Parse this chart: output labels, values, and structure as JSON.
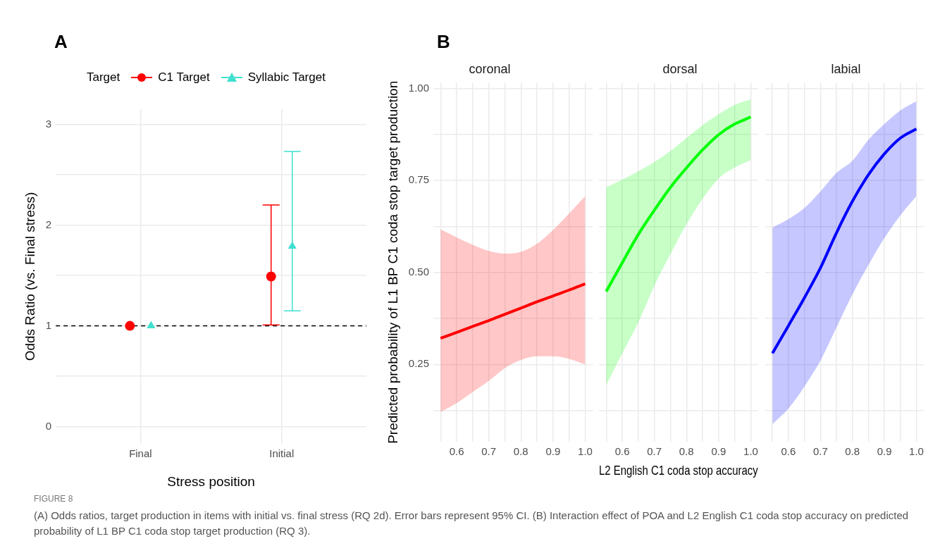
{
  "chart_data": [
    {
      "type": "scatter",
      "annotations": [
        "A",
        "FIGURE 8",
        "(A) Odds ratios, target production in items with initial vs. final stress (RQ 2d). Error bars represent 95% CI. (B) Interaction effect of POA and L2 English C1 coda stop accuracy on predicted probability of L1 BP C1 coda stop target production (RQ 3)."
      ],
      "categories": [
        "Final",
        "Initial"
      ],
      "xlabel": "Stress position",
      "ylabel": "Odds Ratio (vs. Final stress)",
      "legend": "top",
      "legend_title": "Target",
      "ylim": [
        -0.17,
        3.15
      ],
      "yticks": [
        0,
        {
          "value": 0.5,
          "label": null
        },
        1,
        {
          "value": 1.5,
          "label": null
        },
        2,
        {
          "value": 2.5,
          "label": null
        },
        3
      ],
      "grid": true,
      "ref_lines": [
        {
          "axis": "y",
          "value": 1,
          "color": "#000000",
          "line_style": "dashed"
        }
      ],
      "series": [
        {
          "name": "C1 Target",
          "color": "#ff0000",
          "marker": "circle",
          "values": [
            1,
            1.49
          ],
          "errors": [
            null,
            [
              1.01,
              2.2
            ]
          ]
        },
        {
          "name": "Syllabic Target",
          "color": "#40e0d0",
          "marker": "triangle",
          "values": [
            1,
            1.79
          ],
          "errors": [
            null,
            [
              1.15,
              2.73
            ]
          ]
        }
      ]
    },
    {
      "type": "line",
      "title": "coronal",
      "annotations": [
        "B"
      ],
      "ylabel": "Predicted probability of L1 BP C1 coda stop target production",
      "x": [
        0.55,
        0.6,
        0.65,
        0.7,
        0.75,
        0.8,
        0.85,
        0.9,
        0.95,
        1.0
      ],
      "xlim": [
        0.5275,
        1.0225
      ],
      "xticks": [
        {
          "value": 0.55,
          "label": null
        },
        0.6,
        {
          "value": 0.65,
          "label": null
        },
        0.7,
        {
          "value": 0.75,
          "label": null
        },
        0.8,
        {
          "value": 0.85,
          "label": null
        },
        0.9,
        {
          "value": 0.95,
          "label": null
        },
        {
          "value": 1,
          "label": "1.0"
        }
      ],
      "ylim": [
        0.04,
        1.015
      ],
      "yticks": [
        {
          "value": 0.125,
          "label": null
        },
        {
          "value": 0.25,
          "label": "0.25"
        },
        {
          "value": 0.375,
          "label": null
        },
        {
          "value": 0.5,
          "label": "0.50"
        },
        {
          "value": 0.625,
          "label": null
        },
        {
          "value": 0.75,
          "label": "0.75"
        },
        {
          "value": 0.875,
          "label": null
        },
        {
          "value": 1,
          "label": "1.00"
        }
      ],
      "grid": true,
      "series": [
        {
          "color": "#ff0000",
          "values": [
            0.321,
            0.337,
            0.353,
            0.369,
            0.386,
            0.403,
            0.42,
            0.436,
            0.452,
            0.469
          ],
          "lower": [
            0.121,
            0.145,
            0.175,
            0.205,
            0.24,
            0.262,
            0.272,
            0.272,
            0.265,
            0.25
          ],
          "upper": [
            0.617,
            0.595,
            0.575,
            0.558,
            0.551,
            0.556,
            0.578,
            0.615,
            0.66,
            0.707
          ]
        }
      ]
    },
    {
      "type": "line",
      "title": "dorsal",
      "xlabel": "L2 English C1 coda stop accuracy",
      "tick_labels": "x",
      "x": [
        0.55,
        0.6,
        0.65,
        0.7,
        0.75,
        0.8,
        0.85,
        0.9,
        0.95,
        1.0
      ],
      "xlim": [
        0.5275,
        1.0225
      ],
      "xticks": [
        {
          "value": 0.55,
          "label": null
        },
        0.6,
        {
          "value": 0.65,
          "label": null
        },
        0.7,
        {
          "value": 0.75,
          "label": null
        },
        0.8,
        {
          "value": 0.85,
          "label": null
        },
        0.9,
        {
          "value": 0.95,
          "label": null
        },
        {
          "value": 1,
          "label": "1.0"
        }
      ],
      "ylim": [
        0.04,
        1.015
      ],
      "yticks": [
        {
          "value": 0.125,
          "label": null
        },
        {
          "value": 0.25,
          "label": null
        },
        {
          "value": 0.375,
          "label": null
        },
        {
          "value": 0.5,
          "label": null
        },
        {
          "value": 0.625,
          "label": null
        },
        {
          "value": 0.75,
          "label": null
        },
        {
          "value": 0.875,
          "label": null
        },
        {
          "value": 1,
          "label": null
        }
      ],
      "grid": true,
      "series": [
        {
          "color": "#00ff00",
          "values": [
            0.448,
            0.526,
            0.603,
            0.669,
            0.731,
            0.784,
            0.833,
            0.874,
            0.903,
            0.922
          ],
          "lower": [
            0.193,
            0.28,
            0.364,
            0.464,
            0.55,
            0.631,
            0.7,
            0.755,
            0.785,
            0.805
          ],
          "upper": [
            0.731,
            0.752,
            0.775,
            0.8,
            0.83,
            0.865,
            0.9,
            0.93,
            0.955,
            0.97
          ]
        }
      ]
    },
    {
      "type": "line",
      "title": "labial",
      "tick_labels": "x",
      "x": [
        0.55,
        0.6,
        0.65,
        0.7,
        0.75,
        0.8,
        0.85,
        0.9,
        0.95,
        1.0
      ],
      "xlim": [
        0.5275,
        1.0225
      ],
      "xticks": [
        {
          "value": 0.55,
          "label": null
        },
        0.6,
        {
          "value": 0.65,
          "label": null
        },
        0.7,
        {
          "value": 0.75,
          "label": null
        },
        0.8,
        {
          "value": 0.85,
          "label": null
        },
        0.9,
        {
          "value": 0.95,
          "label": null
        },
        {
          "value": 1,
          "label": "1.0"
        }
      ],
      "ylim": [
        0.04,
        1.015
      ],
      "yticks": [
        {
          "value": 0.125,
          "label": null
        },
        {
          "value": 0.25,
          "label": null
        },
        {
          "value": 0.375,
          "label": null
        },
        {
          "value": 0.5,
          "label": null
        },
        {
          "value": 0.625,
          "label": null
        },
        {
          "value": 0.75,
          "label": null
        },
        {
          "value": 0.875,
          "label": null
        },
        {
          "value": 1,
          "label": null
        }
      ],
      "grid": true,
      "series": [
        {
          "color": "#0000ff",
          "values": [
            0.28,
            0.355,
            0.431,
            0.512,
            0.607,
            0.693,
            0.765,
            0.822,
            0.865,
            0.89
          ],
          "lower": [
            0.088,
            0.13,
            0.19,
            0.26,
            0.35,
            0.44,
            0.52,
            0.593,
            0.655,
            0.707
          ],
          "upper": [
            0.622,
            0.645,
            0.675,
            0.72,
            0.77,
            0.803,
            0.86,
            0.903,
            0.94,
            0.965
          ]
        }
      ]
    }
  ]
}
